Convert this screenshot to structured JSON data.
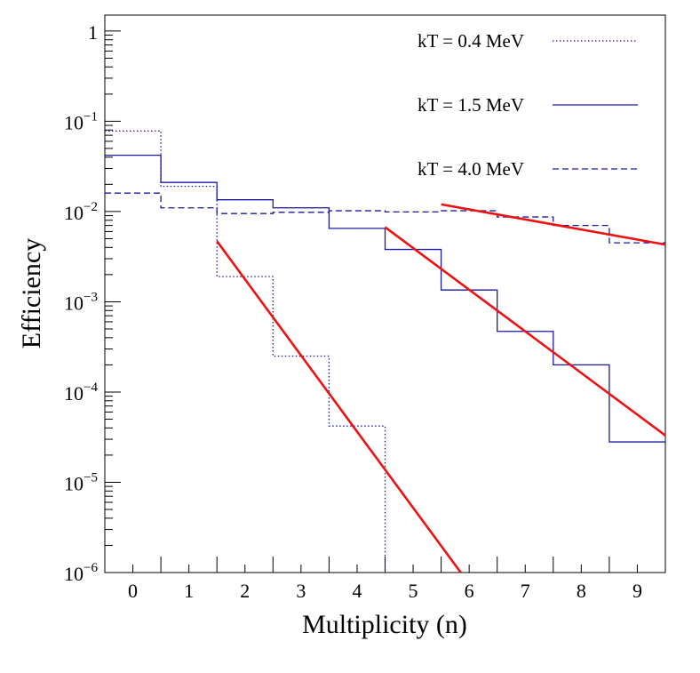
{
  "chart_data": {
    "type": "line",
    "title": "",
    "xlabel": "Multiplicity (n)",
    "ylabel": "Efficiency",
    "xlim": [
      -0.5,
      9.5
    ],
    "ylim": [
      1e-06,
      1.5
    ],
    "yscale": "log",
    "grid": false,
    "legend_position": "top-right",
    "x_tick_labels": [
      "0",
      "1",
      "2",
      "3",
      "4",
      "5",
      "6",
      "7",
      "8",
      "9"
    ],
    "y_tick_labels": [
      {
        "value": 1,
        "base": "1",
        "exp": ""
      },
      {
        "value": 0.1,
        "base": "10",
        "exp": "−1"
      },
      {
        "value": 0.01,
        "base": "10",
        "exp": "−2"
      },
      {
        "value": 0.001,
        "base": "10",
        "exp": "−3"
      },
      {
        "value": 0.0001,
        "base": "10",
        "exp": "−4"
      },
      {
        "value": 1e-05,
        "base": "10",
        "exp": "−5"
      },
      {
        "value": 1e-06,
        "base": "10",
        "exp": "−6"
      }
    ],
    "series": [
      {
        "name": "kT = 0.4 MeV",
        "style": "dotted",
        "color": "#1a1aa0",
        "type": "step",
        "x": [
          0,
          1,
          2,
          3,
          4,
          5,
          6,
          7,
          8,
          9
        ],
        "values": [
          0.078,
          0.019,
          0.0019,
          0.00025,
          4.2e-05,
          null,
          null,
          null,
          null,
          null
        ]
      },
      {
        "name": "kT = 1.5 MeV",
        "style": "solid",
        "color": "#1a1aa0",
        "type": "step",
        "x": [
          0,
          1,
          2,
          3,
          4,
          5,
          6,
          7,
          8,
          9
        ],
        "values": [
          0.042,
          0.021,
          0.0135,
          0.011,
          0.0065,
          0.0038,
          0.00135,
          0.00047,
          0.0002,
          2.8e-05
        ]
      },
      {
        "name": "kT = 4.0 MeV",
        "style": "dashed",
        "color": "#1a1aa0",
        "type": "step",
        "x": [
          0,
          1,
          2,
          3,
          4,
          5,
          6,
          7,
          8,
          9
        ],
        "values": [
          0.016,
          0.011,
          0.0095,
          0.0098,
          0.0102,
          0.0099,
          0.0102,
          0.0087,
          0.007,
          0.0045
        ]
      }
    ],
    "fits": [
      {
        "name": "fit kT = 0.4 MeV",
        "color": "#ee1111",
        "x": [
          1.5,
          5.85
        ],
        "y": [
          0.0047,
          1e-06
        ]
      },
      {
        "name": "fit kT = 1.5 MeV",
        "color": "#ee1111",
        "x": [
          4.5,
          9.5
        ],
        "y": [
          0.0067,
          3.3e-05
        ]
      },
      {
        "name": "fit kT = 4.0 MeV",
        "color": "#ee1111",
        "x": [
          5.5,
          9.5
        ],
        "y": [
          0.012,
          0.0043
        ]
      }
    ]
  }
}
